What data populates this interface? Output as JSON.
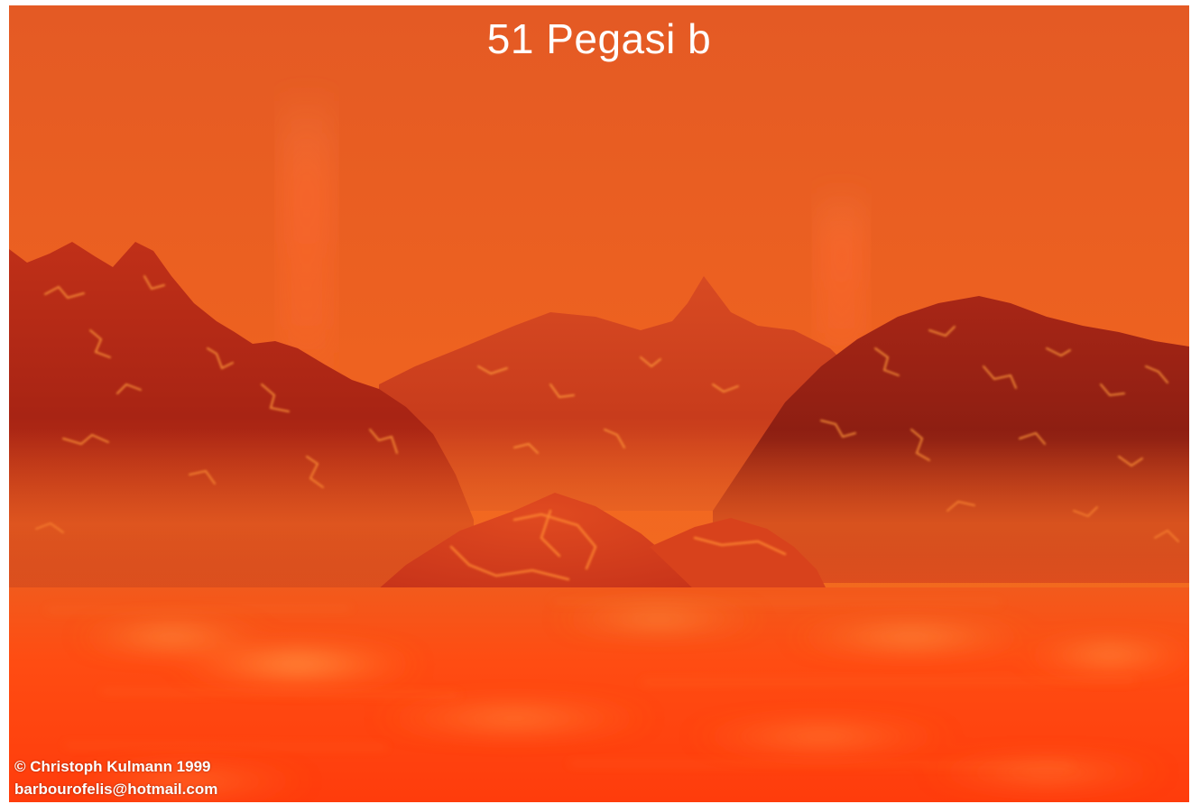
{
  "image": {
    "title": "51 Pegasi b",
    "copyright": "© Christoph Kulmann 1999",
    "email": "barbourofelis@hotmail.com"
  },
  "palette": {
    "sky_top": "#e45a22",
    "sky_bottom": "#f0641e",
    "mountain_dark": "#8c1e10",
    "mountain_mid": "#c83a1a",
    "lava_sea": "#ff4a10",
    "glow": "#ffd060"
  }
}
